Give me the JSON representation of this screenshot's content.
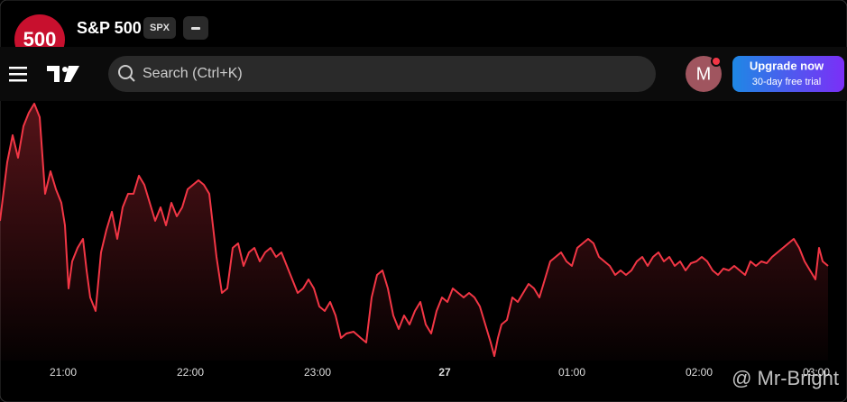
{
  "header": {
    "logo_text": "500",
    "title": "S&P 500",
    "ticker": "SPX"
  },
  "navbar": {
    "search_placeholder": "Search (Ctrl+K)",
    "avatar_letter": "M",
    "upgrade_title": "Upgrade now",
    "upgrade_subtitle": "30-day free trial"
  },
  "time_axis": {
    "labels": [
      "21:00",
      "22:00",
      "23:00",
      "27",
      "01:00",
      "02:00",
      "03:00"
    ]
  },
  "watermark": "@ Mr-Bright"
}
